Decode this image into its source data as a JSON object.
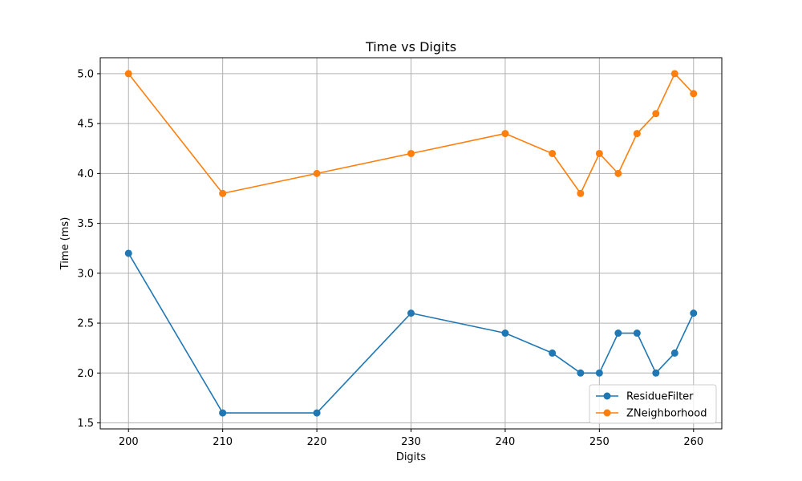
{
  "chart_data": {
    "type": "line",
    "title": "Time vs Digits",
    "xlabel": "Digits",
    "ylabel": "Time (ms)",
    "xlim": [
      197.0,
      263.0
    ],
    "ylim": [
      1.44,
      5.16
    ],
    "xticks": [
      200,
      210,
      220,
      230,
      240,
      250,
      260
    ],
    "yticks": [
      1.5,
      2.0,
      2.5,
      3.0,
      3.5,
      4.0,
      4.5,
      5.0
    ],
    "xtick_labels": [
      "200",
      "210",
      "220",
      "230",
      "240",
      "250",
      "260"
    ],
    "ytick_labels": [
      "1.5",
      "2.0",
      "2.5",
      "3.0",
      "3.5",
      "4.0",
      "4.5",
      "5.0"
    ],
    "grid": true,
    "legend_position": "lower-right",
    "x": [
      200,
      210,
      220,
      230,
      240,
      245,
      248,
      250,
      252,
      254,
      256,
      258,
      260
    ],
    "series": [
      {
        "name": "ResidueFilter",
        "color": "#1f77b4",
        "values": [
          3.2,
          1.6,
          1.6,
          2.6,
          2.4,
          2.2,
          2.0,
          2.0,
          2.4,
          2.4,
          2.0,
          2.2,
          2.6
        ]
      },
      {
        "name": "ZNeighborhood",
        "color": "#ff7f0e",
        "values": [
          5.0,
          3.8,
          4.0,
          4.2,
          4.4,
          4.2,
          3.8,
          4.2,
          4.0,
          4.4,
          4.6,
          5.0,
          4.8
        ]
      }
    ]
  }
}
